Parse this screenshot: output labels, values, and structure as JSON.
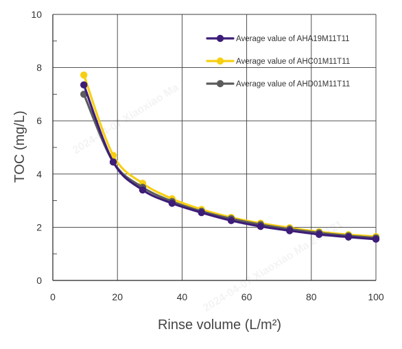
{
  "chart_data": {
    "type": "line",
    "title": "",
    "xlabel": "Rinse volume (L/m²)",
    "ylabel": "TOC (mg/L)",
    "xlim": [
      0,
      100
    ],
    "ylim": [
      0,
      10
    ],
    "xticks": [
      0,
      20,
      40,
      60,
      80,
      100
    ],
    "yticks": [
      0,
      2,
      4,
      6,
      8,
      10
    ],
    "grid": true,
    "legend_position": "top-right",
    "series": [
      {
        "name": "Average value of AHA19M11T11",
        "color": "#3d1d78",
        "x": [
          9.6,
          18.7,
          27.8,
          36.9,
          46,
          55.2,
          64.3,
          73.3,
          82.4,
          91.5,
          100
        ],
        "y": [
          7.35,
          4.45,
          3.4,
          2.9,
          2.55,
          2.25,
          2.03,
          1.87,
          1.73,
          1.63,
          1.55
        ]
      },
      {
        "name": "Average value of AHC01M11T11",
        "color": "#f7cf12",
        "x": [
          9.6,
          18.7,
          27.8,
          36.9,
          46,
          55.2,
          64.3,
          73.3,
          82.4,
          91.5,
          100
        ],
        "y": [
          7.72,
          4.7,
          3.65,
          3.07,
          2.67,
          2.37,
          2.15,
          1.98,
          1.83,
          1.72,
          1.65
        ]
      },
      {
        "name": "Average value of AHD01M11T11",
        "color": "#5c5c5c",
        "x": [
          9.6,
          18.7,
          27.8,
          36.9,
          46,
          55.2,
          64.3,
          73.3,
          82.4,
          91.5,
          100
        ],
        "y": [
          7.0,
          4.45,
          3.5,
          2.97,
          2.6,
          2.32,
          2.1,
          1.93,
          1.79,
          1.68,
          1.6
        ]
      }
    ]
  },
  "watermarks": [
    "2024-04-07  Xiaoxiao Ma",
    "2024-04-07  Xiaoxiao Ma  240121"
  ]
}
